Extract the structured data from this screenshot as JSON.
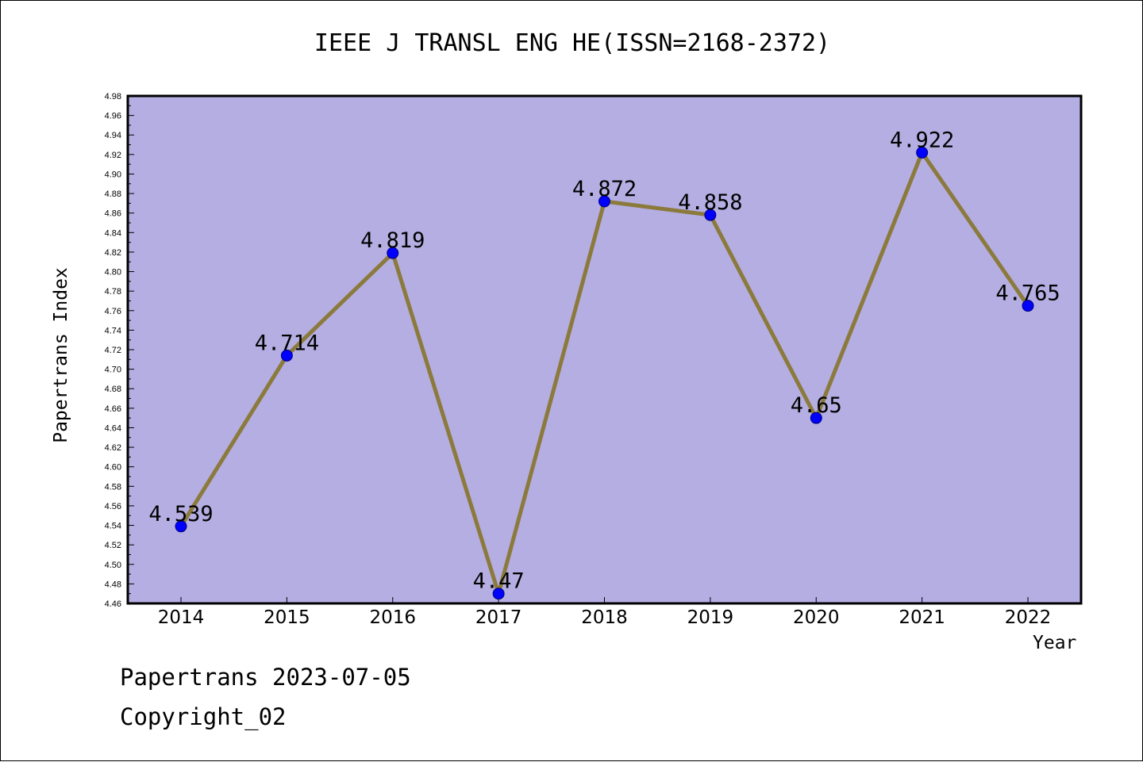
{
  "chart_data": {
    "type": "line",
    "title": "IEEE J TRANSL ENG HE(ISSN=2168-2372)",
    "xlabel": "Year",
    "ylabel": "Papertrans Index",
    "categories": [
      "2014",
      "2015",
      "2016",
      "2017",
      "2018",
      "2019",
      "2020",
      "2021",
      "2022"
    ],
    "values": [
      4.539,
      4.714,
      4.819,
      4.47,
      4.872,
      4.858,
      4.65,
      4.922,
      4.765
    ],
    "data_labels": [
      "4.539",
      "4.714",
      "4.819",
      "4.47",
      "4.872",
      "4.858",
      "4.65",
      "4.922",
      "4.765"
    ],
    "ylim": [
      4.46,
      4.98
    ],
    "yticks": [
      "4.46",
      "4.48",
      "4.50",
      "4.52",
      "4.54",
      "4.56",
      "4.58",
      "4.60",
      "4.62",
      "4.64",
      "4.66",
      "4.68",
      "4.70",
      "4.72",
      "4.74",
      "4.76",
      "4.78",
      "4.80",
      "4.82",
      "4.84",
      "4.86",
      "4.88",
      "4.90",
      "4.92",
      "4.94",
      "4.96",
      "4.98"
    ],
    "grid": false,
    "colors": {
      "plot_background": "#b4aee2",
      "line": "#8b7a3c",
      "marker": "#0000ff"
    }
  },
  "footer": {
    "line1": "Papertrans 2023-07-05",
    "line2": "Copyright_02"
  }
}
